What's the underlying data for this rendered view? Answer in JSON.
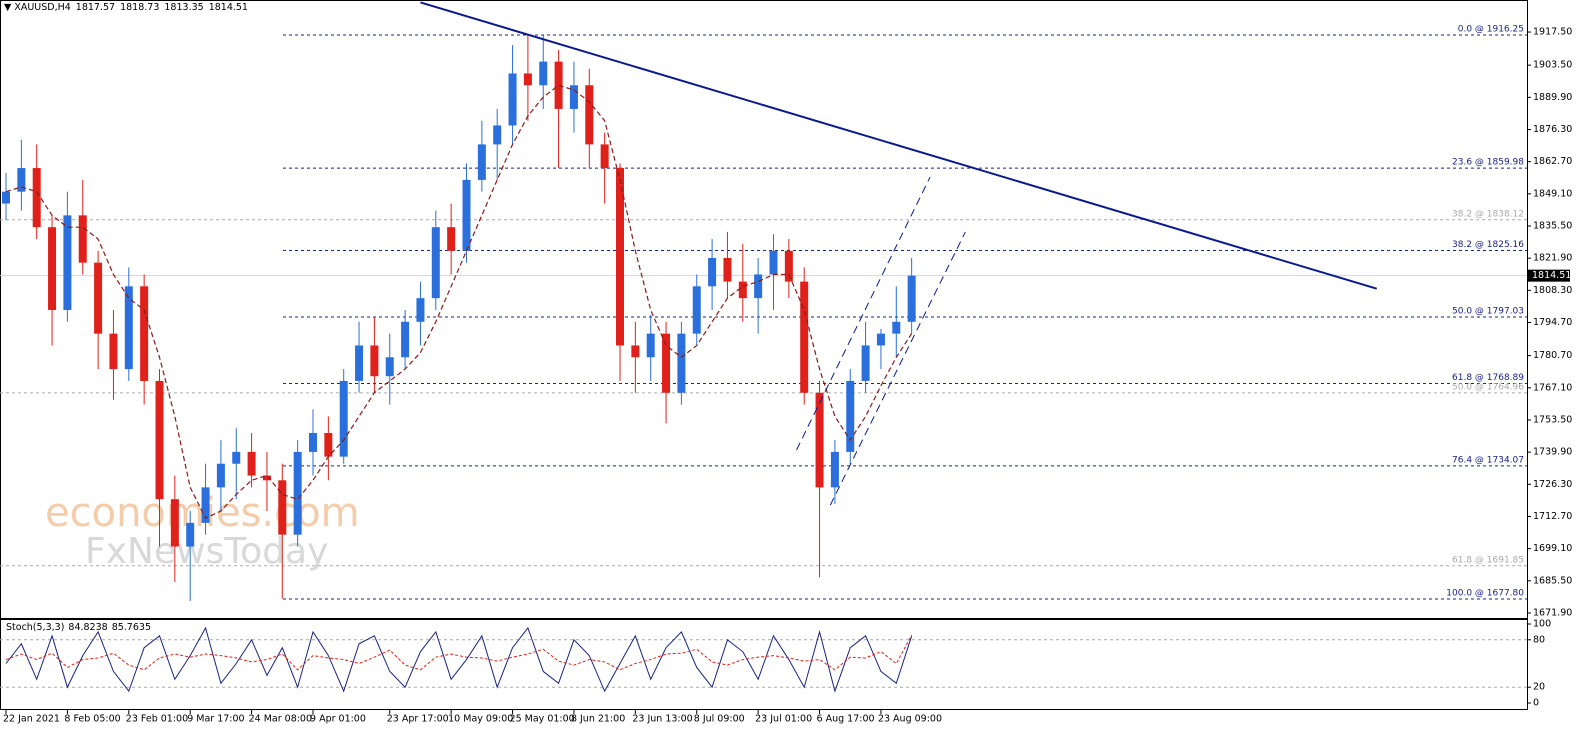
{
  "chart_data": {
    "type": "candlestick",
    "symbol": "XAUUSD,H4",
    "ohlc": [
      1817.57,
      1818.73,
      1813.35,
      1814.51
    ],
    "watermark": [
      "economies.com",
      "FxNewsToday"
    ],
    "colors": {
      "up": "#2a6fdb",
      "down": "#e0201a",
      "ma": "#8b1a1a",
      "trend": "#0a1a8c",
      "fib": "#1a237e",
      "fib_muted": "#aaaaaa"
    },
    "categories": [
      "22 Jan 2021",
      null,
      null,
      null,
      "8 Feb 05:00",
      null,
      null,
      null,
      "23 Feb 01:00",
      null,
      null,
      null,
      "9 Mar 17:00",
      null,
      null,
      null,
      "24 Mar 08:00",
      null,
      null,
      null,
      "9 Apr 01:00",
      null,
      null,
      null,
      null,
      "23 Apr 17:00",
      null,
      null,
      null,
      "10 May 09:00",
      null,
      null,
      null,
      "25 May 01:00",
      null,
      null,
      null,
      "8 Jun 21:00",
      null,
      null,
      null,
      "23 Jun 13:00",
      null,
      null,
      null,
      "8 Jul 09:00",
      null,
      null,
      null,
      "23 Jul 01:00",
      null,
      null,
      null,
      "6 Aug 17:00",
      null,
      null,
      null,
      "23 Aug 09:00",
      null,
      null
    ],
    "candles": [
      [
        1845,
        1858,
        1838,
        1850
      ],
      [
        1850,
        1872,
        1842,
        1860
      ],
      [
        1860,
        1870,
        1830,
        1835
      ],
      [
        1835,
        1840,
        1785,
        1800
      ],
      [
        1800,
        1850,
        1795,
        1840
      ],
      [
        1840,
        1855,
        1815,
        1820
      ],
      [
        1820,
        1825,
        1775,
        1790
      ],
      [
        1790,
        1800,
        1762,
        1775
      ],
      [
        1775,
        1818,
        1770,
        1810
      ],
      [
        1810,
        1815,
        1760,
        1770
      ],
      [
        1770,
        1775,
        1700,
        1720
      ],
      [
        1720,
        1730,
        1685,
        1700
      ],
      [
        1700,
        1715,
        1677,
        1710
      ],
      [
        1710,
        1735,
        1705,
        1725
      ],
      [
        1725,
        1745,
        1715,
        1735
      ],
      [
        1735,
        1750,
        1720,
        1740
      ],
      [
        1740,
        1748,
        1725,
        1730
      ],
      [
        1730,
        1740,
        1715,
        1728
      ],
      [
        1728,
        1735,
        1678,
        1705
      ],
      [
        1705,
        1745,
        1700,
        1740
      ],
      [
        1740,
        1758,
        1730,
        1748
      ],
      [
        1748,
        1755,
        1728,
        1738
      ],
      [
        1738,
        1775,
        1735,
        1770
      ],
      [
        1770,
        1795,
        1765,
        1785
      ],
      [
        1785,
        1797,
        1765,
        1772
      ],
      [
        1772,
        1790,
        1760,
        1780
      ],
      [
        1780,
        1800,
        1775,
        1795
      ],
      [
        1795,
        1812,
        1785,
        1805
      ],
      [
        1805,
        1842,
        1800,
        1835
      ],
      [
        1835,
        1845,
        1815,
        1825
      ],
      [
        1825,
        1862,
        1820,
        1855
      ],
      [
        1855,
        1880,
        1850,
        1870
      ],
      [
        1870,
        1885,
        1855,
        1878
      ],
      [
        1878,
        1912,
        1870,
        1900
      ],
      [
        1900,
        1916,
        1880,
        1895
      ],
      [
        1895,
        1916,
        1885,
        1905
      ],
      [
        1905,
        1910,
        1860,
        1885
      ],
      [
        1885,
        1905,
        1875,
        1895
      ],
      [
        1895,
        1902,
        1860,
        1870
      ],
      [
        1870,
        1875,
        1845,
        1860
      ],
      [
        1860,
        1862,
        1770,
        1785
      ],
      [
        1785,
        1795,
        1765,
        1780
      ],
      [
        1780,
        1798,
        1770,
        1790
      ],
      [
        1790,
        1795,
        1752,
        1765
      ],
      [
        1765,
        1795,
        1760,
        1790
      ],
      [
        1790,
        1815,
        1785,
        1810
      ],
      [
        1810,
        1830,
        1800,
        1822
      ],
      [
        1822,
        1833,
        1805,
        1812
      ],
      [
        1812,
        1828,
        1795,
        1805
      ],
      [
        1805,
        1822,
        1790,
        1815
      ],
      [
        1815,
        1832,
        1800,
        1825
      ],
      [
        1825,
        1830,
        1805,
        1812
      ],
      [
        1812,
        1818,
        1760,
        1765
      ],
      [
        1765,
        1770,
        1687,
        1725
      ],
      [
        1725,
        1745,
        1718,
        1740
      ],
      [
        1740,
        1775,
        1735,
        1770
      ],
      [
        1770,
        1795,
        1765,
        1785
      ],
      [
        1785,
        1792,
        1775,
        1790
      ],
      [
        1790,
        1810,
        1780,
        1795
      ],
      [
        1795,
        1822,
        1790,
        1814.51
      ]
    ],
    "ma": [
      1850,
      1852,
      1850,
      1840,
      1835,
      1835,
      1830,
      1815,
      1805,
      1800,
      1780,
      1755,
      1725,
      1712,
      1715,
      1722,
      1728,
      1730,
      1722,
      1720,
      1728,
      1738,
      1745,
      1755,
      1765,
      1770,
      1775,
      1782,
      1795,
      1810,
      1825,
      1840,
      1855,
      1870,
      1882,
      1890,
      1895,
      1893,
      1888,
      1880,
      1855,
      1825,
      1800,
      1785,
      1780,
      1785,
      1795,
      1805,
      1810,
      1812,
      1815,
      1815,
      1800,
      1775,
      1755,
      1745,
      1755,
      1768,
      1780,
      1790
    ],
    "ylim": [
      1670.2,
      1930.2
    ],
    "yticks": [
      {
        "value": 1917.5,
        "label": "1917.50"
      },
      {
        "value": 1903.5,
        "label": "1903.50"
      },
      {
        "value": 1889.9,
        "label": "1889.90"
      },
      {
        "value": 1876.3,
        "label": "1876.30"
      },
      {
        "value": 1862.7,
        "label": "1862.70"
      },
      {
        "value": 1849.1,
        "label": "1849.10"
      },
      {
        "value": 1835.5,
        "label": "1835.50"
      },
      {
        "value": 1821.9,
        "label": "1821.90"
      },
      {
        "value": 1808.3,
        "label": "1808.30"
      },
      {
        "value": 1794.7,
        "label": "1794.70"
      },
      {
        "value": 1780.7,
        "label": "1780.70"
      },
      {
        "value": 1767.1,
        "label": "1767.10"
      },
      {
        "value": 1753.5,
        "label": "1753.50"
      },
      {
        "value": 1739.9,
        "label": "1739.90"
      },
      {
        "value": 1726.3,
        "label": "1726.30"
      },
      {
        "value": 1712.7,
        "label": "1712.70"
      },
      {
        "value": 1699.1,
        "label": "1699.10"
      },
      {
        "value": 1685.5,
        "label": "1685.50"
      },
      {
        "value": 1671.9,
        "label": "1671.90"
      }
    ],
    "fib_levels": [
      {
        "value": 1916.25,
        "label": "0.0 @ 1916.25",
        "color": "#1a237e"
      },
      {
        "value": 1859.98,
        "label": "23.6 @ 1859.98",
        "color": "#1a237e"
      },
      {
        "value": 1838.12,
        "label": "38.2 @ 1838.12",
        "color": "#aaaaaa"
      },
      {
        "value": 1825.16,
        "label": "38.2 @ 1825.16",
        "color": "#1a237e"
      },
      {
        "value": 1797.03,
        "label": "50.0 @ 1797.03",
        "color": "#1a237e"
      },
      {
        "value": 1768.89,
        "label": "61.8 @ 1768.89",
        "color": "#1a237e"
      },
      {
        "value": 1764.96,
        "label": "50.0 @ 1764.96",
        "color": "#aaaaaa"
      },
      {
        "value": 1734.07,
        "label": "76.4 @ 1734.07",
        "color": "#1a237e"
      },
      {
        "value": 1691.85,
        "label": "61.8 @ 1691.85",
        "color": "#aaaaaa"
      },
      {
        "value": 1677.8,
        "label": "100.0 @ 1677.80",
        "color": "#1a237e"
      }
    ],
    "trendline": {
      "x": [
        27,
        89.3
      ],
      "y": [
        1930,
        1809
      ]
    },
    "channel": [
      {
        "x": [
          51.5,
          60.2
        ],
        "y": [
          1740.8,
          1856.2
        ]
      },
      {
        "x": [
          53.7,
          62.5
        ],
        "y": [
          1717.5,
          1833
        ]
      }
    ],
    "stoch": {
      "name": "Stoch(5,3,3)",
      "ylim": [
        0,
        100
      ],
      "yticks": [
        100,
        80,
        20,
        0
      ],
      "levels": [
        80,
        20
      ],
      "series": [
        {
          "color": "#1a237e",
          "values": [
            50,
            75,
            30,
            85,
            20,
            60,
            90,
            40,
            15,
            70,
            85,
            30,
            60,
            95,
            25,
            50,
            80,
            35,
            70,
            20,
            90,
            60,
            15,
            75,
            85,
            40,
            20,
            65,
            90,
            30,
            55,
            85,
            20,
            70,
            95,
            40,
            25,
            80,
            60,
            15,
            50,
            85,
            30,
            70,
            90,
            45,
            20,
            80,
            65,
            30,
            85,
            55,
            20,
            90,
            15,
            70,
            85,
            40,
            25,
            84.8238
          ]
        },
        {
          "color": "#e0201a",
          "values": [
            55,
            62,
            55,
            63,
            45,
            55,
            57,
            63,
            48,
            42,
            57,
            62,
            58,
            62,
            60,
            57,
            52,
            55,
            62,
            42,
            60,
            57,
            55,
            50,
            58,
            67,
            48,
            42,
            58,
            62,
            58,
            57,
            53,
            58,
            62,
            68,
            53,
            48,
            55,
            52,
            42,
            50,
            55,
            62,
            63,
            68,
            52,
            48,
            55,
            58,
            60,
            57,
            53,
            55,
            42,
            58,
            57,
            65,
            50,
            85.7635
          ]
        }
      ]
    }
  }
}
